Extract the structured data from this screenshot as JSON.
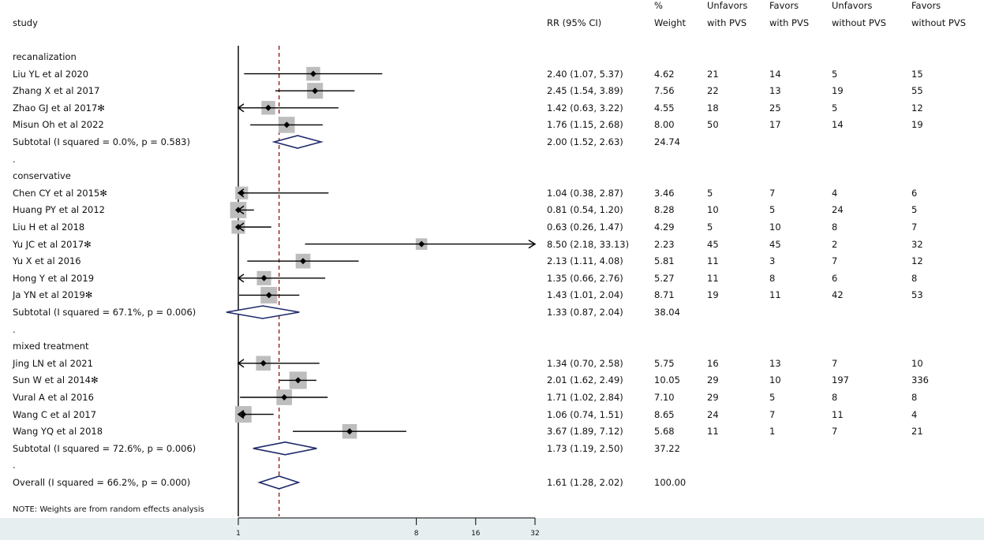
{
  "header": {
    "study": "study",
    "rr": "RR (95% CI)",
    "weight": [
      "%",
      "Weight"
    ],
    "c1": [
      "Unfavors",
      "with PVS"
    ],
    "c2": [
      "Favors",
      "with PVS"
    ],
    "c3": [
      "Unfavors",
      "without PVS"
    ],
    "c4": [
      "Favors",
      "without PVS"
    ]
  },
  "note": "NOTE: Weights are from random effects analysis",
  "chart_data": {
    "type": "forest",
    "scale": "log",
    "x_ticks": [
      1,
      8,
      16,
      32
    ],
    "x_range": [
      1,
      32
    ],
    "reference_line": 1,
    "pooled_line": 1.61,
    "rows": [
      {
        "kind": "group",
        "label": "recanalization"
      },
      {
        "kind": "study",
        "label": "Liu YL et al 2020",
        "rr": 2.4,
        "lo": 1.07,
        "hi": 5.37,
        "rr_text": "2.40 (1.07, 5.37)",
        "weight": "4.62",
        "w": 4.62,
        "c1": "21",
        "c2": "14",
        "c3": "5",
        "c4": "15"
      },
      {
        "kind": "study",
        "label": "Zhang X et al 2017",
        "rr": 2.45,
        "lo": 1.54,
        "hi": 3.89,
        "rr_text": "2.45 (1.54, 3.89)",
        "weight": "7.56",
        "w": 7.56,
        "c1": "22",
        "c2": "13",
        "c3": "19",
        "c4": "55"
      },
      {
        "kind": "study",
        "label": "Zhao GJ et al 2017✻",
        "rr": 1.42,
        "lo": 0.63,
        "hi": 3.22,
        "rr_text": "1.42 (0.63, 3.22)",
        "weight": "4.55",
        "w": 4.55,
        "c1": "18",
        "c2": "25",
        "c3": "5",
        "c4": "12"
      },
      {
        "kind": "study",
        "label": "Misun Oh et al 2022",
        "rr": 1.76,
        "lo": 1.15,
        "hi": 2.68,
        "rr_text": "1.76 (1.15, 2.68)",
        "weight": "8.00",
        "w": 8.0,
        "c1": "50",
        "c2": "17",
        "c3": "14",
        "c4": "19"
      },
      {
        "kind": "subtotal",
        "label": "Subtotal  (I  squared = 0.0%, p = 0.583)",
        "rr": 2.0,
        "lo": 1.52,
        "hi": 2.63,
        "rr_text": "2.00 (1.52, 2.63)",
        "weight": "24.74"
      },
      {
        "kind": "dot",
        "label": "."
      },
      {
        "kind": "group",
        "label": "conservative"
      },
      {
        "kind": "study",
        "label": "Chen CY et al 2015✻",
        "rr": 1.04,
        "lo": 0.38,
        "hi": 2.87,
        "rr_text": "1.04 (0.38, 2.87)",
        "weight": "3.46",
        "w": 3.46,
        "c1": "5",
        "c2": "7",
        "c3": "4",
        "c4": "6"
      },
      {
        "kind": "study",
        "label": "Huang PY et al 2012",
        "rr": 0.81,
        "lo": 0.54,
        "hi": 1.2,
        "rr_text": "0.81 (0.54, 1.20)",
        "weight": "8.28",
        "w": 8.28,
        "c1": "10",
        "c2": "5",
        "c3": "24",
        "c4": "5"
      },
      {
        "kind": "study",
        "label": "Liu H et al 2018",
        "rr": 0.63,
        "lo": 0.26,
        "hi": 1.47,
        "rr_text": "0.63 (0.26, 1.47)",
        "weight": "4.29",
        "w": 4.29,
        "c1": "5",
        "c2": "10",
        "c3": "8",
        "c4": "7"
      },
      {
        "kind": "study",
        "label": "Yu JC et al 2017✻",
        "rr": 8.5,
        "lo": 2.18,
        "hi": 33.13,
        "rr_text": "8.50 (2.18, 33.13)",
        "weight": "2.23",
        "w": 2.23,
        "c1": "45",
        "c2": "45",
        "c3": "2",
        "c4": "32"
      },
      {
        "kind": "study",
        "label": "Yu X et al 2016",
        "rr": 2.13,
        "lo": 1.11,
        "hi": 4.08,
        "rr_text": "2.13 (1.11, 4.08)",
        "weight": "5.81",
        "w": 5.81,
        "c1": "11",
        "c2": "3",
        "c3": "7",
        "c4": "12"
      },
      {
        "kind": "study",
        "label": "Hong Y et al 2019",
        "rr": 1.35,
        "lo": 0.66,
        "hi": 2.76,
        "rr_text": "1.35 (0.66, 2.76)",
        "weight": "5.27",
        "w": 5.27,
        "c1": "11",
        "c2": "8",
        "c3": "6",
        "c4": "8"
      },
      {
        "kind": "study",
        "label": "Ja YN et al 2019✻",
        "rr": 1.43,
        "lo": 1.01,
        "hi": 2.04,
        "rr_text": "1.43 (1.01, 2.04)",
        "weight": "8.71",
        "w": 8.71,
        "c1": "19",
        "c2": "11",
        "c3": "42",
        "c4": "53"
      },
      {
        "kind": "subtotal",
        "label": "Subtotal  (I  squared = 67.1%, p = 0.006)",
        "rr": 1.33,
        "lo": 0.87,
        "hi": 2.04,
        "rr_text": "1.33 (0.87, 2.04)",
        "weight": "38.04"
      },
      {
        "kind": "dot",
        "label": "."
      },
      {
        "kind": "group",
        "label": "mixed treatment"
      },
      {
        "kind": "study",
        "label": "Jing LN et al 2021",
        "rr": 1.34,
        "lo": 0.7,
        "hi": 2.58,
        "rr_text": "1.34 (0.70, 2.58)",
        "weight": "5.75",
        "w": 5.75,
        "c1": "16",
        "c2": "13",
        "c3": "7",
        "c4": "10"
      },
      {
        "kind": "study",
        "label": "Sun W et al 2014✻",
        "rr": 2.01,
        "lo": 1.62,
        "hi": 2.49,
        "rr_text": "2.01 (1.62, 2.49)",
        "weight": "10.05",
        "w": 10.05,
        "c1": "29",
        "c2": "10",
        "c3": "197",
        "c4": "336"
      },
      {
        "kind": "study",
        "label": "Vural A et al 2016",
        "rr": 1.71,
        "lo": 1.02,
        "hi": 2.84,
        "rr_text": "1.71 (1.02, 2.84)",
        "weight": "7.10",
        "w": 7.1,
        "c1": "29",
        "c2": "5",
        "c3": "8",
        "c4": "8"
      },
      {
        "kind": "study",
        "label": "Wang C et al 2017",
        "rr": 1.06,
        "lo": 0.74,
        "hi": 1.51,
        "rr_text": "1.06 (0.74, 1.51)",
        "weight": "8.65",
        "w": 8.65,
        "c1": "24",
        "c2": "7",
        "c3": "11",
        "c4": "4"
      },
      {
        "kind": "study",
        "label": "Wang YQ et al 2018",
        "rr": 3.67,
        "lo": 1.89,
        "hi": 7.12,
        "rr_text": "3.67 (1.89, 7.12)",
        "weight": "5.68",
        "w": 5.68,
        "c1": "11",
        "c2": "1",
        "c3": "7",
        "c4": "21"
      },
      {
        "kind": "subtotal",
        "label": "Subtotal  (I  squared = 72.6%, p = 0.006)",
        "rr": 1.73,
        "lo": 1.19,
        "hi": 2.5,
        "rr_text": "1.73 (1.19, 2.50)",
        "weight": "37.22"
      },
      {
        "kind": "dot",
        "label": "."
      },
      {
        "kind": "overall",
        "label": "Overall  (I  squared = 66.2%, p = 0.000)",
        "rr": 1.61,
        "lo": 1.28,
        "hi": 2.02,
        "rr_text": "1.61 (1.28, 2.02)",
        "weight": "100.00"
      }
    ]
  }
}
